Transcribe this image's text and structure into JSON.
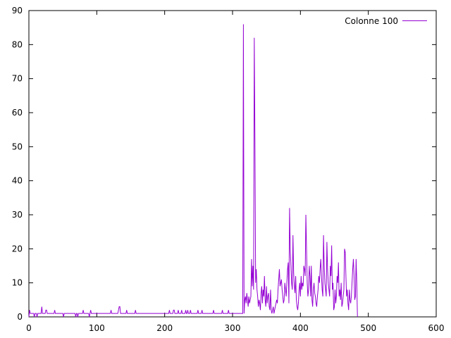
{
  "chart_data": {
    "type": "line",
    "title": "",
    "xlabel": "",
    "ylabel": "",
    "xlim": [
      0,
      600
    ],
    "ylim": [
      0,
      90
    ],
    "x_ticks": [
      0,
      100,
      200,
      300,
      400,
      500,
      600
    ],
    "y_ticks": [
      0,
      10,
      20,
      30,
      40,
      50,
      60,
      70,
      80,
      90
    ],
    "grid": false,
    "legend_position": "top-right",
    "series": [
      {
        "name": "Colonne 100",
        "color": "#9400d3",
        "x_start": 0,
        "x_step": 1,
        "values": [
          0,
          2,
          1,
          1,
          1,
          1,
          1,
          1,
          0,
          1,
          1,
          1,
          0,
          1,
          1,
          1,
          1,
          1,
          1,
          3,
          1,
          1,
          1,
          1,
          1,
          2,
          2,
          1,
          1,
          1,
          1,
          1,
          1,
          1,
          1,
          1,
          1,
          1,
          2,
          1,
          1,
          1,
          1,
          1,
          1,
          1,
          1,
          1,
          1,
          1,
          1,
          0,
          1,
          1,
          1,
          1,
          1,
          1,
          1,
          1,
          1,
          1,
          1,
          1,
          1,
          1,
          1,
          1,
          1,
          0,
          1,
          1,
          0,
          1,
          1,
          1,
          1,
          1,
          1,
          1,
          2,
          1,
          1,
          1,
          1,
          1,
          1,
          1,
          1,
          0,
          1,
          2,
          1,
          1,
          1,
          1,
          1,
          1,
          1,
          1,
          1,
          1,
          1,
          1,
          1,
          1,
          1,
          1,
          1,
          1,
          1,
          1,
          1,
          1,
          1,
          1,
          1,
          1,
          1,
          1,
          1,
          2,
          1,
          1,
          1,
          1,
          1,
          1,
          1,
          1,
          1,
          1,
          2,
          3,
          3,
          1,
          1,
          1,
          1,
          1,
          1,
          1,
          1,
          1,
          2,
          1,
          1,
          1,
          1,
          1,
          1,
          1,
          1,
          1,
          1,
          1,
          1,
          2,
          1,
          1,
          1,
          1,
          1,
          1,
          1,
          1,
          1,
          1,
          1,
          1,
          1,
          1,
          1,
          1,
          1,
          1,
          1,
          1,
          1,
          1,
          1,
          1,
          1,
          1,
          1,
          1,
          1,
          1,
          1,
          1,
          1,
          1,
          1,
          1,
          1,
          1,
          1,
          1,
          1,
          1,
          1,
          1,
          1,
          1,
          1,
          1,
          1,
          2,
          1,
          1,
          1,
          1,
          1,
          2,
          2,
          1,
          1,
          1,
          1,
          1,
          2,
          1,
          1,
          1,
          1,
          2,
          1,
          1,
          1,
          1,
          1,
          2,
          1,
          1,
          2,
          1,
          1,
          1,
          2,
          1,
          1,
          1,
          1,
          1,
          1,
          1,
          1,
          1,
          1,
          2,
          1,
          1,
          1,
          1,
          1,
          2,
          1,
          1,
          1,
          1,
          1,
          1,
          1,
          1,
          1,
          1,
          1,
          1,
          1,
          1,
          1,
          1,
          2,
          1,
          1,
          1,
          1,
          1,
          1,
          1,
          1,
          1,
          1,
          1,
          1,
          2,
          1,
          1,
          1,
          1,
          1,
          1,
          1,
          1,
          2,
          1,
          1,
          1,
          1,
          1,
          1,
          1,
          1,
          1,
          1,
          1,
          1,
          1,
          1,
          1,
          1,
          1,
          1,
          1,
          1,
          1,
          86,
          1,
          5,
          6,
          4,
          7,
          5,
          3,
          6,
          4,
          5,
          6,
          17,
          9,
          15,
          8,
          82,
          52,
          10,
          14,
          8,
          6,
          3,
          5,
          4,
          2,
          7,
          9,
          4,
          8,
          6,
          12,
          5,
          3,
          9,
          4,
          6,
          7,
          3,
          2,
          8,
          2,
          1,
          2,
          3,
          1,
          2,
          3,
          4,
          5,
          4,
          8,
          11,
          14,
          9,
          10,
          11,
          8,
          6,
          4,
          5,
          10,
          8,
          6,
          10,
          14,
          16,
          4,
          32,
          20,
          15,
          10,
          8,
          24,
          13,
          9,
          7,
          12,
          5,
          3,
          2,
          4,
          8,
          10,
          6,
          12,
          8,
          10,
          9,
          15,
          14,
          12,
          30,
          20,
          10,
          6,
          8,
          15,
          12,
          6,
          15,
          5,
          3,
          8,
          10,
          7,
          6,
          4,
          3,
          6,
          8,
          12,
          10,
          14,
          17,
          12,
          8,
          6,
          24,
          15,
          10,
          8,
          6,
          22,
          14,
          10,
          8,
          6,
          15,
          12,
          21,
          8,
          10,
          2,
          3,
          8,
          4,
          6,
          12,
          10,
          16,
          6,
          8,
          5,
          10,
          3,
          4,
          6,
          8,
          20,
          19,
          12,
          6,
          8,
          4,
          2,
          8,
          5,
          4,
          6,
          10,
          14,
          17,
          12,
          5,
          6,
          17,
          10,
          0
        ]
      }
    ]
  }
}
